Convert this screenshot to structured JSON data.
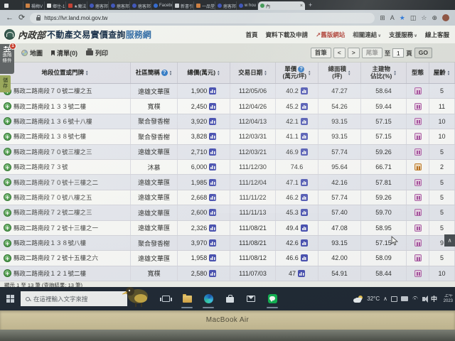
{
  "browser": {
    "tabs": [
      {
        "label": "",
        "icon": "page"
      },
      {
        "label": "楊梅V",
        "icon": "home"
      },
      {
        "label": "鄉住-1",
        "icon": "page"
      },
      {
        "label": "★魔法",
        "icon": "shopee"
      },
      {
        "label": "痞客邦",
        "icon": "pixnet"
      },
      {
        "label": "痞客邦",
        "icon": "pixnet"
      },
      {
        "label": "痞客邦",
        "icon": "pixnet"
      },
      {
        "label": "Facebo",
        "icon": "facebook"
      },
      {
        "label": "新書引",
        "icon": "note"
      },
      {
        "label": "一品堂",
        "icon": "home"
      },
      {
        "label": "痞客邦",
        "icon": "pixnet"
      },
      {
        "label": "w hou",
        "icon": "pixnet"
      },
      {
        "label": "內",
        "icon": "site",
        "active": true
      }
    ],
    "new_tab": "+",
    "url": "https://lvr.land.moi.gov.tw"
  },
  "site": {
    "logo": {
      "agency": "內政部",
      "title_main": "不動產交易實價查詢",
      "title_accent": "服務網"
    },
    "nav": [
      {
        "label": "首頁"
      },
      {
        "label": "資料下載及申請"
      },
      {
        "label": "舊版網站",
        "external": true
      },
      {
        "label": "相關連結",
        "chevron": true
      },
      {
        "label": "支援服務",
        "chevron": true
      },
      {
        "label": "線上客服"
      }
    ],
    "floating": {
      "advanced_label_1": "進階",
      "advanced_label_2": "條件",
      "badge": "1",
      "save_label_1": "儲",
      "save_label_2": "存"
    },
    "actionbar": {
      "map": "地圖",
      "list": "清單(0)",
      "print": "列印"
    },
    "pagination": {
      "first": "首筆",
      "prev": "<",
      "next": ">",
      "last": "尾筆",
      "to": "至",
      "page": "1",
      "unit": "頁",
      "go": "GO"
    },
    "back_to_top": "∧"
  },
  "table": {
    "headers": [
      {
        "lines": [
          "地段位置或門牌"
        ],
        "sort": true
      },
      {
        "lines": [
          "社區簡稱"
        ],
        "help": true,
        "sort": true
      },
      {
        "lines": [
          "總價(萬元)"
        ],
        "sort": true
      },
      {
        "lines": [
          "交易日期"
        ],
        "sort": true
      },
      {
        "lines": [
          "單價",
          "(萬元/坪)"
        ],
        "help": true,
        "sort": true
      },
      {
        "lines": [
          "總面積",
          "(坪)"
        ],
        "sort": true
      },
      {
        "lines": [
          "主建物",
          "佔比(%)"
        ],
        "sort": true
      },
      {
        "lines": [
          "型態"
        ]
      },
      {
        "lines": [
          "屋齡"
        ],
        "sort": true
      }
    ],
    "rows": [
      {
        "address": "縣政二路南段７０號二樓之五",
        "community": "遠雄文華匯",
        "price": "1,900",
        "price_icon": true,
        "date": "112/05/06",
        "unit": "40.2",
        "unit_icon": true,
        "area": "47.27",
        "ratio": "58.64",
        "type": "pink",
        "age": "5"
      },
      {
        "address": "縣政二路南段１３３號二樓",
        "community": "寬樸",
        "price": "2,450",
        "price_icon": true,
        "date": "112/04/26",
        "unit": "45.2",
        "unit_icon": true,
        "area": "54.26",
        "ratio": "59.44",
        "type": "pink",
        "age": "11"
      },
      {
        "address": "縣政二路南段１３６號十八樓",
        "community": "聚合發香榭",
        "price": "3,920",
        "price_icon": true,
        "date": "112/04/13",
        "unit": "42.1",
        "unit_icon": true,
        "area": "93.15",
        "ratio": "57.15",
        "type": "pink",
        "age": "10"
      },
      {
        "address": "縣政二路南段１３８號七樓",
        "community": "聚合發香榭",
        "price": "3,828",
        "price_icon": true,
        "date": "112/03/31",
        "unit": "41.1",
        "unit_icon": true,
        "area": "93.15",
        "ratio": "57.15",
        "type": "pink",
        "age": "10"
      },
      {
        "address": "縣政二路南段７０號三樓之三",
        "community": "遠雄文華匯",
        "price": "2,710",
        "price_icon": true,
        "date": "112/03/21",
        "unit": "46.9",
        "unit_icon": true,
        "area": "57.74",
        "ratio": "59.26",
        "type": "pink",
        "age": "5"
      },
      {
        "address": "縣政二路南段７３號",
        "community": "沐慕",
        "price": "6,000",
        "price_icon": true,
        "date": "111/12/30",
        "unit": "74.6",
        "unit_icon": false,
        "area": "95.64",
        "ratio": "66.71",
        "type": "orange",
        "age": "2"
      },
      {
        "address": "縣政二路南段７０號十三樓之二",
        "community": "遠雄文華匯",
        "price": "1,985",
        "price_icon": true,
        "date": "111/12/04",
        "unit": "47.1",
        "unit_icon": true,
        "area": "42.16",
        "ratio": "57.81",
        "type": "pink",
        "age": "5"
      },
      {
        "address": "縣政二路南段７０號八樓之五",
        "community": "遠雄文華匯",
        "price": "2,668",
        "price_icon": true,
        "date": "111/11/22",
        "unit": "46.2",
        "unit_icon": true,
        "area": "57.74",
        "ratio": "59.26",
        "type": "pink",
        "age": "5"
      },
      {
        "address": "縣政二路南段７２號二樓之三",
        "community": "遠雄文華匯",
        "price": "2,600",
        "price_icon": true,
        "date": "111/11/13",
        "unit": "45.3",
        "unit_icon": true,
        "area": "57.40",
        "ratio": "59.70",
        "type": "pink",
        "age": "5"
      },
      {
        "address": "縣政二路南段７２號十三樓之一",
        "community": "遠雄文華匯",
        "price": "2,326",
        "price_icon": true,
        "date": "111/08/21",
        "unit": "49.4",
        "unit_icon": true,
        "area": "47.08",
        "ratio": "58.95",
        "type": "pink",
        "age": "5"
      },
      {
        "address": "縣政二路南段１３８號八樓",
        "community": "聚合發香榭",
        "price": "3,970",
        "price_icon": true,
        "date": "111/08/21",
        "unit": "42.6",
        "unit_icon": true,
        "area": "93.15",
        "ratio": "57.15",
        "type": "pink",
        "age": "9"
      },
      {
        "address": "縣政二路南段７２號十五樓之六",
        "community": "遠雄文華匯",
        "price": "1,958",
        "price_icon": true,
        "date": "111/08/12",
        "unit": "46.6",
        "unit_icon": true,
        "area": "42.00",
        "ratio": "58.09",
        "type": "pink",
        "age": "5"
      },
      {
        "address": "縣政二路南段１２１號二樓",
        "community": "寬樸",
        "price": "2,580",
        "price_icon": true,
        "date": "111/07/03",
        "unit": "47",
        "unit_icon": true,
        "area": "54.91",
        "ratio": "58.44",
        "type": "pink",
        "age": "10"
      }
    ],
    "summary": "顯示 1 至 13 筆 (查詢結果: 13 筆)"
  },
  "taskbar": {
    "search_placeholder": "在這裡輸入文字來搜",
    "apps": [
      "task-view",
      "file-explorer",
      "edge",
      "store",
      "mail",
      "line"
    ],
    "tray": {
      "temp": "32°C",
      "chevron": "∧",
      "ime": "中",
      "time_top": "上午",
      "time_bottom": "2023"
    }
  },
  "device": {
    "label": "MacBook Air"
  },
  "colors": {
    "accent_red": "#b8342a",
    "logo_navy": "#17304e",
    "logo_blue": "#2e6fb0",
    "row_alt": "#eaecf5",
    "trend_icon_blue": "#4a53c0",
    "type_icon_pink": "#bb66b4",
    "type_icon_orange": "#cf8530",
    "line_green": "#06b84e"
  }
}
